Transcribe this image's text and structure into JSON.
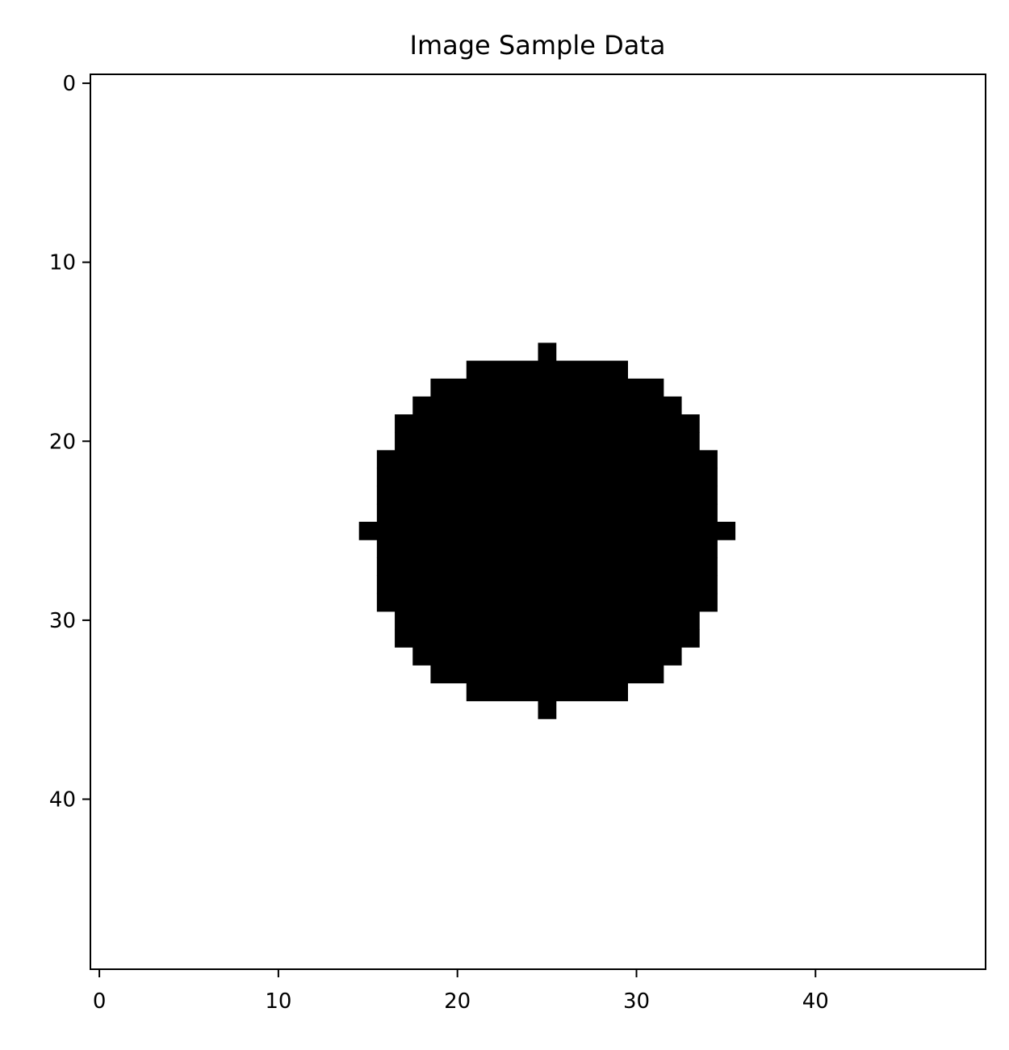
{
  "chart_data": {
    "type": "heatmap",
    "title": "Image Sample Data",
    "xlabel": "",
    "ylabel": "",
    "image_shape": [
      50,
      50
    ],
    "xlim": [
      -0.5,
      49.5
    ],
    "ylim": [
      49.5,
      -0.5
    ],
    "xticks": [
      0,
      10,
      20,
      30,
      40
    ],
    "yticks": [
      0,
      10,
      20,
      30,
      40
    ],
    "colormap": "gray",
    "background_value": 1,
    "grid": false,
    "legend": "none",
    "colors": {
      "background": "#ffffff",
      "filled": "#000000"
    },
    "filled_pixel_runs": [
      {
        "row": 15,
        "x_start": 25,
        "x_end": 25
      },
      {
        "row": 16,
        "x_start": 21,
        "x_end": 29
      },
      {
        "row": 17,
        "x_start": 19,
        "x_end": 31
      },
      {
        "row": 18,
        "x_start": 18,
        "x_end": 32
      },
      {
        "row": 19,
        "x_start": 17,
        "x_end": 33
      },
      {
        "row": 20,
        "x_start": 17,
        "x_end": 33
      },
      {
        "row": 21,
        "x_start": 16,
        "x_end": 34
      },
      {
        "row": 22,
        "x_start": 16,
        "x_end": 34
      },
      {
        "row": 23,
        "x_start": 16,
        "x_end": 34
      },
      {
        "row": 24,
        "x_start": 16,
        "x_end": 34
      },
      {
        "row": 25,
        "x_start": 15,
        "x_end": 35
      },
      {
        "row": 26,
        "x_start": 16,
        "x_end": 34
      },
      {
        "row": 27,
        "x_start": 16,
        "x_end": 34
      },
      {
        "row": 28,
        "x_start": 16,
        "x_end": 34
      },
      {
        "row": 29,
        "x_start": 16,
        "x_end": 34
      },
      {
        "row": 30,
        "x_start": 17,
        "x_end": 33
      },
      {
        "row": 31,
        "x_start": 17,
        "x_end": 33
      },
      {
        "row": 32,
        "x_start": 18,
        "x_end": 32
      },
      {
        "row": 33,
        "x_start": 19,
        "x_end": 31
      },
      {
        "row": 34,
        "x_start": 21,
        "x_end": 29
      },
      {
        "row": 35,
        "x_start": 25,
        "x_end": 25
      }
    ]
  }
}
